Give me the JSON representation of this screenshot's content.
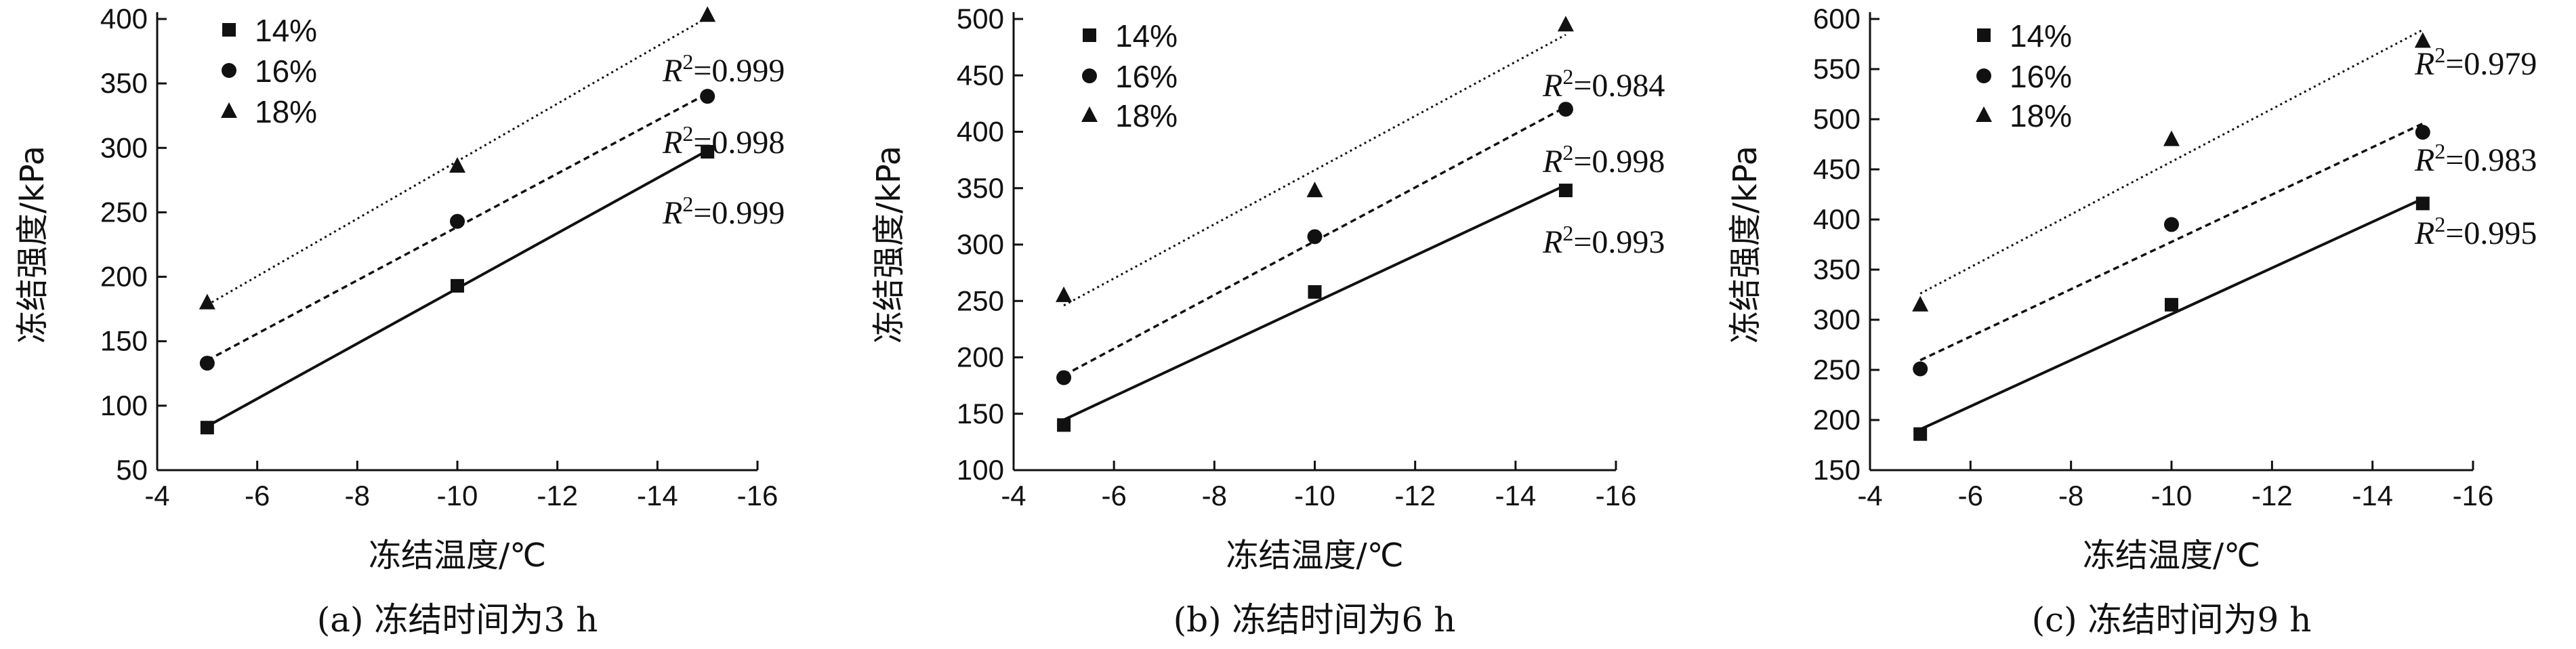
{
  "chart_data": [
    {
      "type": "scatter",
      "xlabel": "冻结温度/℃",
      "ylabel": "冻结强度/kPa",
      "caption": "(a) 冻结时间为3 h",
      "xlim": [
        -4,
        -16
      ],
      "ylim": [
        50,
        400
      ],
      "xticks": [
        -4,
        -6,
        -8,
        -10,
        -12,
        -14,
        -16
      ],
      "yticks": [
        50,
        100,
        150,
        200,
        250,
        300,
        350,
        400
      ],
      "x": [
        -5,
        -10,
        -15
      ],
      "legend_position": "top-left",
      "grid": false,
      "series": [
        {
          "name": "14%",
          "marker": "square",
          "line": "solid",
          "values": [
            83,
            193,
            297
          ],
          "r2": "=0.999"
        },
        {
          "name": "16%",
          "marker": "circle",
          "line": "dashed",
          "values": [
            133,
            243,
            340
          ],
          "r2": "=0.998"
        },
        {
          "name": "18%",
          "marker": "triangle",
          "line": "dotted",
          "values": [
            180,
            286,
            403
          ],
          "r2": "=0.999"
        }
      ]
    },
    {
      "type": "scatter",
      "xlabel": "冻结温度/℃",
      "ylabel": "冻结强度/kPa",
      "caption": "(b) 冻结时间为6 h",
      "xlim": [
        -4,
        -16
      ],
      "ylim": [
        100,
        500
      ],
      "xticks": [
        -4,
        -6,
        -8,
        -10,
        -12,
        -14,
        -16
      ],
      "yticks": [
        100,
        150,
        200,
        250,
        300,
        350,
        400,
        450,
        500
      ],
      "x": [
        -5,
        -10,
        -15
      ],
      "legend_position": "top-left",
      "grid": false,
      "series": [
        {
          "name": "14%",
          "marker": "square",
          "line": "solid",
          "values": [
            140,
            258,
            348
          ],
          "r2": "=0.993"
        },
        {
          "name": "16%",
          "marker": "circle",
          "line": "dashed",
          "values": [
            182,
            307,
            420
          ],
          "r2": "=0.998"
        },
        {
          "name": "18%",
          "marker": "triangle",
          "line": "dotted",
          "values": [
            255,
            348,
            495
          ],
          "r2": "=0.984"
        }
      ]
    },
    {
      "type": "scatter",
      "xlabel": "冻结温度/℃",
      "ylabel": "冻结强度/kPa",
      "caption": "(c) 冻结时间为9 h",
      "xlim": [
        -4,
        -16
      ],
      "ylim": [
        150,
        600
      ],
      "xticks": [
        -4,
        -6,
        -8,
        -10,
        -12,
        -14,
        -16
      ],
      "yticks": [
        150,
        200,
        250,
        300,
        350,
        400,
        450,
        500,
        550,
        600
      ],
      "x": [
        -5,
        -10,
        -15
      ],
      "legend_position": "top-left",
      "grid": false,
      "series": [
        {
          "name": "14%",
          "marker": "square",
          "line": "solid",
          "values": [
            186,
            315,
            416
          ],
          "r2": "=0.995"
        },
        {
          "name": "16%",
          "marker": "circle",
          "line": "dashed",
          "values": [
            251,
            395,
            487
          ],
          "r2": "=0.983"
        },
        {
          "name": "18%",
          "marker": "triangle",
          "line": "dotted",
          "values": [
            315,
            480,
            578
          ],
          "r2": "=0.979"
        }
      ]
    }
  ],
  "r2_symbol": "R",
  "r2_superscript": "2",
  "colors": {
    "ink": "#111111",
    "background": "#ffffff"
  }
}
